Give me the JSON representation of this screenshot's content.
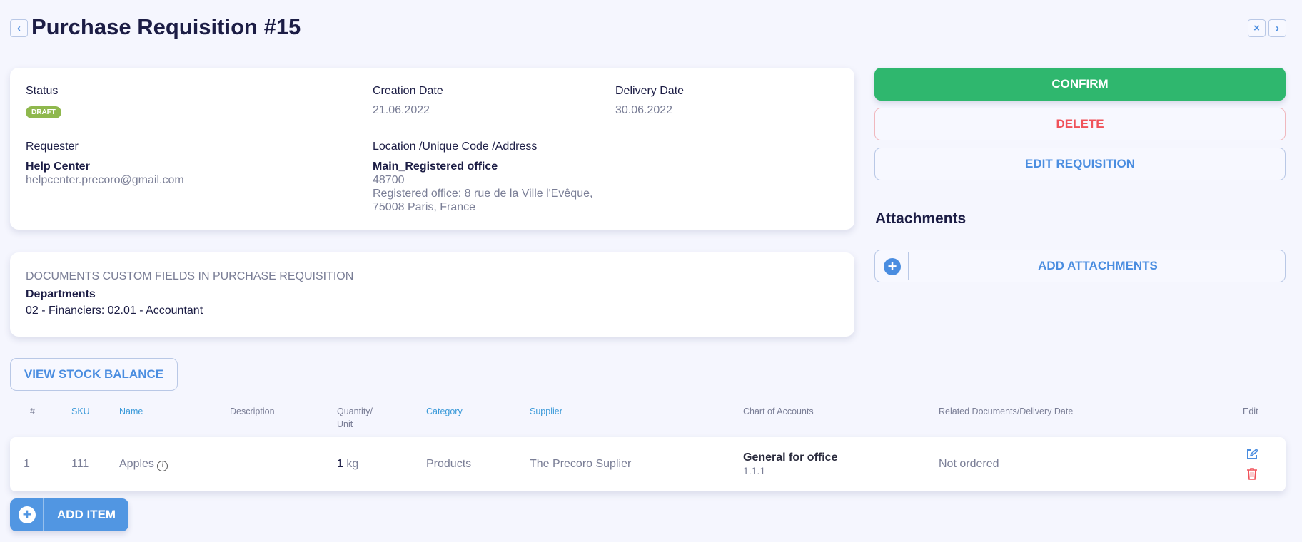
{
  "header": {
    "title": "Purchase Requisition #15",
    "back_icon": "chevron-left-icon",
    "close_icon": "close-icon",
    "next_icon": "chevron-right-icon"
  },
  "details": {
    "status_label": "Status",
    "status_value": "DRAFT",
    "status_color": "#8fb84d",
    "creation_label": "Creation Date",
    "creation_value": "21.06.2022",
    "delivery_label": "Delivery Date",
    "delivery_value": "30.06.2022",
    "requester_label": "Requester",
    "requester_name": "Help Center",
    "requester_email": "helpcenter.precoro@gmail.com",
    "location_label": "Location /Unique Code /Address",
    "location_name": "Main_Registered office",
    "location_code": "48700",
    "address_line1": "Registered office: 8 rue de la Ville l'Evêque,",
    "address_line2": "75008 Paris, France"
  },
  "custom_fields": {
    "title": "DOCUMENTS CUSTOM FIELDS IN PURCHASE REQUISITION",
    "field_label": "Departments",
    "field_value": "02 - Financiers: 02.01 - Accountant"
  },
  "actions": {
    "confirm": "CONFIRM",
    "delete": "DELETE",
    "edit": "EDIT REQUISITION",
    "confirm_color": "#2fb76e",
    "delete_color": "#f0525a"
  },
  "attachments": {
    "title": "Attachments",
    "add_label": "ADD ATTACHMENTS"
  },
  "stock_button": "VIEW STOCK BALANCE",
  "table": {
    "headers": {
      "num": "#",
      "sku": "SKU",
      "name": "Name",
      "description": "Description",
      "quantity": "Quantity/",
      "unit": "Unit",
      "category": "Category",
      "supplier": "Supplier",
      "chart": "Chart of Accounts",
      "related": "Related Documents/Delivery Date",
      "edit": "Edit"
    },
    "rows": [
      {
        "num": "1",
        "sku": "111",
        "name": "Apples",
        "description": "",
        "quantity": "1",
        "unit": "kg",
        "category": "Products",
        "supplier": "The Precoro Suplier",
        "chart_name": "General for office",
        "chart_code": "1.1.1",
        "related": "Not ordered"
      }
    ]
  },
  "add_item": "ADD ITEM"
}
